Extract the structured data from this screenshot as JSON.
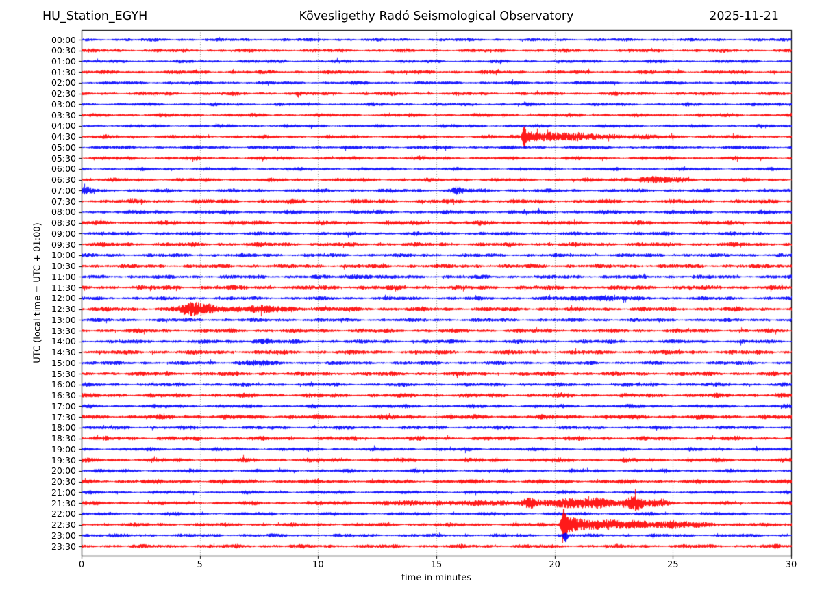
{
  "header": {
    "station": "HU_Station_EGYH",
    "observatory": "Kövesligethy Radó Seismological Observatory",
    "date": "2025-11-21"
  },
  "axes": {
    "xlabel": "time in minutes",
    "ylabel": "UTC (local time = UTC + 01:00)"
  },
  "chart_data": {
    "type": "line",
    "variant": "helicorder-seismogram",
    "title": "HU_Station_EGYH — Kövesligethy Radó Seismological Observatory — 2025-11-21",
    "xlabel": "time in minutes",
    "ylabel": "UTC (local time = UTC + 01:00)",
    "x_range": [
      0,
      30
    ],
    "x_ticks": [
      0,
      5,
      10,
      15,
      20,
      25,
      30
    ],
    "minutes_per_row": 30,
    "grid": "vertical-dotted-every-5-min",
    "grid_color": "#888888",
    "trace_colors": {
      "hour_rows": "#0000ff",
      "half_hour_rows": "#ff0000"
    },
    "rows": [
      {
        "label": "00:00",
        "color": "#0000ff",
        "noise": 1.8,
        "events": []
      },
      {
        "label": "00:30",
        "color": "#ff0000",
        "noise": 2.0,
        "events": []
      },
      {
        "label": "01:00",
        "color": "#0000ff",
        "noise": 1.8,
        "events": []
      },
      {
        "label": "01:30",
        "color": "#ff0000",
        "noise": 2.0,
        "events": []
      },
      {
        "label": "02:00",
        "color": "#0000ff",
        "noise": 1.8,
        "events": []
      },
      {
        "label": "02:30",
        "color": "#ff0000",
        "noise": 2.0,
        "events": []
      },
      {
        "label": "03:00",
        "color": "#0000ff",
        "noise": 1.8,
        "events": []
      },
      {
        "label": "03:30",
        "color": "#ff0000",
        "noise": 2.0,
        "events": []
      },
      {
        "label": "04:00",
        "color": "#0000ff",
        "noise": 1.8,
        "events": []
      },
      {
        "label": "04:30",
        "color": "#ff0000",
        "noise": 2.0,
        "events": [
          {
            "type": "spike",
            "minute": 18.68,
            "amp": 12,
            "width": 0.07,
            "dir": "both"
          },
          {
            "type": "quake",
            "minute": 18.68,
            "amp": 6.5,
            "decay": 1.4
          },
          {
            "type": "burst",
            "minute": 21.5,
            "amp": 1.6,
            "width": 2.5
          }
        ]
      },
      {
        "label": "05:00",
        "color": "#0000ff",
        "noise": 1.8,
        "events": []
      },
      {
        "label": "05:30",
        "color": "#ff0000",
        "noise": 2.0,
        "events": []
      },
      {
        "label": "06:00",
        "color": "#0000ff",
        "noise": 1.8,
        "events": []
      },
      {
        "label": "06:30",
        "color": "#ff0000",
        "noise": 2.0,
        "events": [
          {
            "type": "burst",
            "minute": 24.2,
            "amp": 2.2,
            "width": 1.4
          }
        ]
      },
      {
        "label": "07:00",
        "color": "#0000ff",
        "noise": 2.1,
        "events": [
          {
            "type": "burst",
            "minute": 0.15,
            "amp": 3.2,
            "width": 0.3
          },
          {
            "type": "burst",
            "minute": 15.9,
            "amp": 3.2,
            "width": 0.3
          }
        ]
      },
      {
        "label": "07:30",
        "color": "#ff0000",
        "noise": 2.4,
        "events": []
      },
      {
        "label": "08:00",
        "color": "#0000ff",
        "noise": 2.1,
        "events": []
      },
      {
        "label": "08:30",
        "color": "#ff0000",
        "noise": 2.4,
        "events": []
      },
      {
        "label": "09:00",
        "color": "#0000ff",
        "noise": 2.1,
        "events": []
      },
      {
        "label": "09:30",
        "color": "#ff0000",
        "noise": 2.4,
        "events": []
      },
      {
        "label": "10:00",
        "color": "#0000ff",
        "noise": 2.1,
        "events": []
      },
      {
        "label": "10:30",
        "color": "#ff0000",
        "noise": 2.4,
        "events": []
      },
      {
        "label": "11:00",
        "color": "#0000ff",
        "noise": 2.1,
        "events": [
          {
            "type": "burst",
            "minute": 11.8,
            "amp": 1.8,
            "width": 0.6
          }
        ]
      },
      {
        "label": "11:30",
        "color": "#ff0000",
        "noise": 2.4,
        "events": []
      },
      {
        "label": "12:00",
        "color": "#0000ff",
        "noise": 2.1,
        "events": [
          {
            "type": "burst",
            "minute": 21.7,
            "amp": 2.2,
            "width": 1.2
          }
        ]
      },
      {
        "label": "12:30",
        "color": "#ff0000",
        "noise": 2.5,
        "events": [
          {
            "type": "burst",
            "minute": 4.55,
            "amp": 5.5,
            "width": 0.45
          },
          {
            "type": "burst",
            "minute": 5.3,
            "amp": 4.5,
            "width": 0.5
          },
          {
            "type": "burst",
            "minute": 7.5,
            "amp": 2.2,
            "width": 2.0
          }
        ]
      },
      {
        "label": "13:00",
        "color": "#0000ff",
        "noise": 2.1,
        "events": []
      },
      {
        "label": "13:30",
        "color": "#ff0000",
        "noise": 2.4,
        "events": []
      },
      {
        "label": "14:00",
        "color": "#0000ff",
        "noise": 2.1,
        "events": [
          {
            "type": "burst",
            "minute": 7.6,
            "amp": 2.0,
            "width": 0.5
          }
        ]
      },
      {
        "label": "14:30",
        "color": "#ff0000",
        "noise": 2.4,
        "events": []
      },
      {
        "label": "15:00",
        "color": "#0000ff",
        "noise": 2.1,
        "events": [
          {
            "type": "burst",
            "minute": 7.3,
            "amp": 2.0,
            "width": 0.7
          }
        ]
      },
      {
        "label": "15:30",
        "color": "#ff0000",
        "noise": 2.4,
        "events": []
      },
      {
        "label": "16:00",
        "color": "#0000ff",
        "noise": 2.1,
        "events": []
      },
      {
        "label": "16:30",
        "color": "#ff0000",
        "noise": 2.4,
        "events": []
      },
      {
        "label": "17:00",
        "color": "#0000ff",
        "noise": 2.1,
        "events": []
      },
      {
        "label": "17:30",
        "color": "#ff0000",
        "noise": 2.4,
        "events": []
      },
      {
        "label": "18:00",
        "color": "#0000ff",
        "noise": 2.0,
        "events": []
      },
      {
        "label": "18:30",
        "color": "#ff0000",
        "noise": 2.3,
        "events": []
      },
      {
        "label": "19:00",
        "color": "#0000ff",
        "noise": 2.0,
        "events": []
      },
      {
        "label": "19:30",
        "color": "#ff0000",
        "noise": 2.3,
        "events": []
      },
      {
        "label": "20:00",
        "color": "#0000ff",
        "noise": 2.0,
        "events": []
      },
      {
        "label": "20:30",
        "color": "#ff0000",
        "noise": 2.2,
        "events": []
      },
      {
        "label": "21:00",
        "color": "#0000ff",
        "noise": 1.9,
        "events": []
      },
      {
        "label": "21:30",
        "color": "#ff0000",
        "noise": 2.1,
        "events": [
          {
            "type": "burst",
            "minute": 16.0,
            "amp": 1.5,
            "width": 4.0
          },
          {
            "type": "burst",
            "minute": 18.9,
            "amp": 4.5,
            "width": 0.35
          },
          {
            "type": "burst",
            "minute": 20.6,
            "amp": 3.0,
            "width": 1.2
          },
          {
            "type": "burst",
            "minute": 21.9,
            "amp": 4.0,
            "width": 1.0
          },
          {
            "type": "burst",
            "minute": 23.4,
            "amp": 6.5,
            "width": 0.45
          },
          {
            "type": "burst",
            "minute": 24.4,
            "amp": 3.5,
            "width": 0.5
          }
        ]
      },
      {
        "label": "22:00",
        "color": "#0000ff",
        "noise": 1.9,
        "events": []
      },
      {
        "label": "22:30",
        "color": "#ff0000",
        "noise": 2.1,
        "events": [
          {
            "type": "spike",
            "minute": 20.35,
            "amp": 13,
            "width": 0.12,
            "dir": "both"
          },
          {
            "type": "quake",
            "minute": 20.3,
            "amp": 11,
            "decay": 1.3
          },
          {
            "type": "burst",
            "minute": 23.2,
            "amp": 2.5,
            "width": 1.5
          },
          {
            "type": "burst",
            "minute": 25.2,
            "amp": 2.0,
            "width": 1.5
          }
        ]
      },
      {
        "label": "23:00",
        "color": "#0000ff",
        "noise": 1.9,
        "events": [
          {
            "type": "spike",
            "minute": 20.45,
            "amp": 8,
            "width": 0.1,
            "dir": "down"
          }
        ]
      },
      {
        "label": "23:30",
        "color": "#ff0000",
        "noise": 2.1,
        "events": []
      }
    ]
  }
}
